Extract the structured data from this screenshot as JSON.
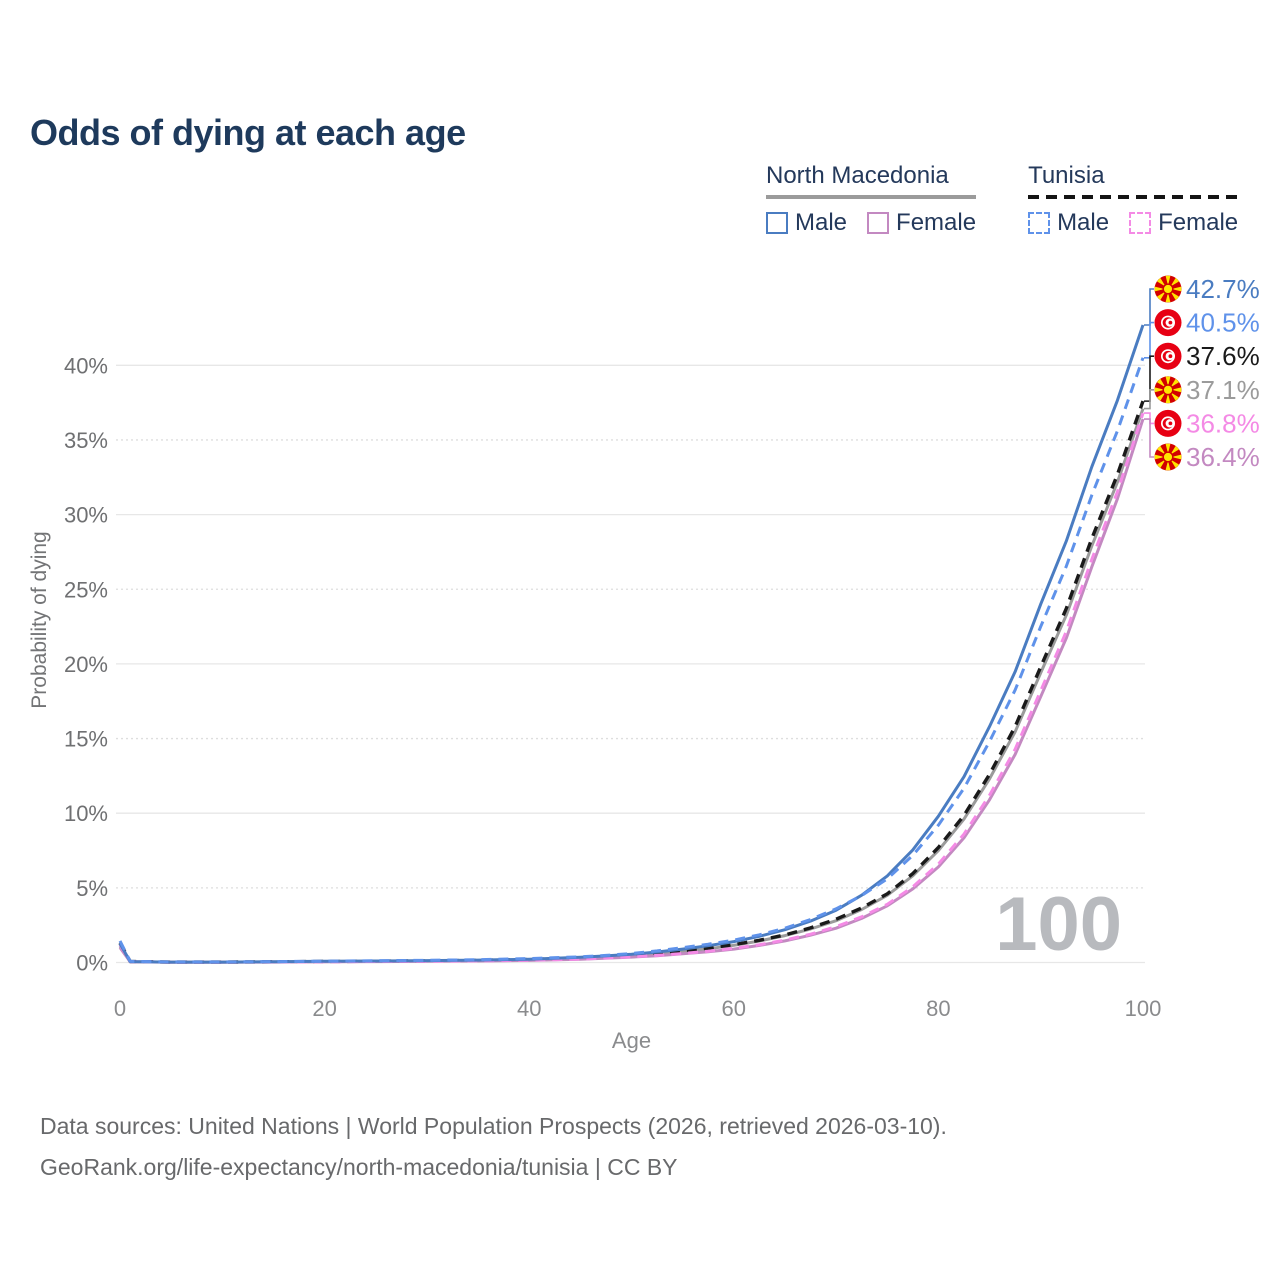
{
  "title": "Odds of dying at each age",
  "legend": {
    "groups": [
      {
        "name": "North Macedonia",
        "underline": "solid",
        "underline_color": "#9b9b9b",
        "items": [
          {
            "label": "Male",
            "color": "#4a7cc1",
            "dash": false
          },
          {
            "label": "Female",
            "color": "#c389c1",
            "dash": false
          }
        ]
      },
      {
        "name": "Tunisia",
        "underline": "dashed",
        "underline_color": "#141414",
        "items": [
          {
            "label": "Male",
            "color": "#5f92ea",
            "dash": true
          },
          {
            "label": "Female",
            "color": "#f48ae5",
            "dash": true
          }
        ]
      }
    ]
  },
  "chart_data": {
    "type": "line",
    "title": "Odds of dying at each age",
    "xlabel": "Age",
    "ylabel": "Probability of dying",
    "xlim": [
      0,
      100
    ],
    "ylim": [
      0,
      44
    ],
    "xticks": [
      0,
      20,
      40,
      60,
      80,
      100
    ],
    "yticks": [
      0,
      5,
      10,
      15,
      20,
      25,
      30,
      35,
      40
    ],
    "ytick_suffix": "%",
    "grid": "horizontal",
    "watermark": "100",
    "x": [
      0,
      1,
      5,
      10,
      15,
      20,
      25,
      30,
      35,
      40,
      45,
      50,
      55,
      60,
      65,
      70,
      75,
      80,
      85,
      90,
      95,
      100
    ],
    "series": [
      {
        "name": "North Macedonia Male",
        "flag": "mk",
        "dash": "solid",
        "color": "#4a7cc1",
        "end_label": "42.7%",
        "values": [
          1.25,
          0.06,
          0.03,
          0.03,
          0.05,
          0.08,
          0.1,
          0.13,
          0.16,
          0.22,
          0.35,
          0.55,
          0.9,
          1.4,
          2.2,
          3.5,
          5.8,
          9.8,
          15.8,
          24.0,
          33.2,
          42.7
        ]
      },
      {
        "name": "Tunisia Male",
        "flag": "tn",
        "dash": "dashed",
        "color": "#5f92ea",
        "end_label": "40.5%",
        "values": [
          1.45,
          0.08,
          0.04,
          0.04,
          0.06,
          0.09,
          0.12,
          0.15,
          0.19,
          0.26,
          0.38,
          0.6,
          1.0,
          1.5,
          2.3,
          3.6,
          5.6,
          9.2,
          14.8,
          22.5,
          31.3,
          40.5
        ]
      },
      {
        "name": "Tunisia Total",
        "flag": "tn",
        "dash": "dashed",
        "color": "#1a1a1a",
        "end_label": "37.6%",
        "values": [
          1.3,
          0.07,
          0.03,
          0.03,
          0.05,
          0.07,
          0.09,
          0.11,
          0.14,
          0.2,
          0.3,
          0.48,
          0.78,
          1.2,
          1.85,
          2.9,
          4.6,
          7.7,
          12.6,
          19.8,
          28.4,
          37.6
        ]
      },
      {
        "name": "North Macedonia Total",
        "flag": "mk",
        "dash": "solid",
        "color": "#9b9b9b",
        "end_label": "37.1%",
        "values": [
          1.1,
          0.05,
          0.03,
          0.03,
          0.04,
          0.06,
          0.08,
          0.1,
          0.13,
          0.18,
          0.28,
          0.45,
          0.73,
          1.15,
          1.8,
          2.8,
          4.5,
          7.5,
          12.3,
          19.4,
          27.9,
          37.1
        ]
      },
      {
        "name": "Tunisia Female",
        "flag": "tn",
        "dash": "dashed",
        "color": "#f48ae5",
        "end_label": "36.8%",
        "values": [
          1.2,
          0.06,
          0.03,
          0.03,
          0.04,
          0.05,
          0.07,
          0.08,
          0.11,
          0.15,
          0.23,
          0.38,
          0.6,
          0.95,
          1.5,
          2.4,
          3.9,
          6.6,
          11.2,
          18.2,
          27.0,
          36.8
        ]
      },
      {
        "name": "North Macedonia Female",
        "flag": "mk",
        "dash": "solid",
        "color": "#c389c1",
        "end_label": "36.4%",
        "values": [
          1.0,
          0.05,
          0.02,
          0.02,
          0.03,
          0.05,
          0.06,
          0.08,
          0.1,
          0.14,
          0.22,
          0.36,
          0.58,
          0.9,
          1.45,
          2.3,
          3.8,
          6.4,
          10.9,
          17.8,
          26.5,
          36.4
        ]
      }
    ],
    "flag_colors": {
      "mk_red": "#d20000",
      "mk_yellow": "#ffe600",
      "tn_red": "#e70013",
      "tn_white": "#ffffff"
    }
  },
  "footer": {
    "line1": "Data sources: United Nations | World Population Prospects (2026, retrieved 2026-03-10).",
    "line2": "GeoRank.org/life-expectancy/north-macedonia/tunisia | CC BY"
  }
}
